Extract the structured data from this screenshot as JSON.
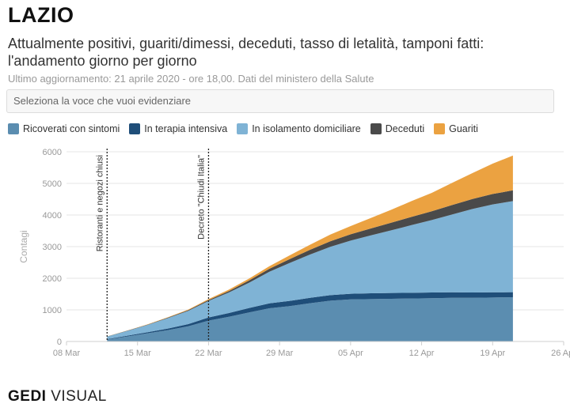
{
  "header": {
    "title": "LAZIO",
    "subtitle": "Attualmente positivi, guariti/dimessi, deceduti, tasso di letalità, tamponi fatti: l'andamento giorno per giorno",
    "updated": "Ultimo aggiornamento: 21 aprile 2020 - ore 18,00. Dati del ministero della Salute"
  },
  "selector": {
    "placeholder": "Seleziona la voce che vuoi evidenziare"
  },
  "footer": {
    "brand_main": "GEDI",
    "brand_sub": "VISUAL"
  },
  "colors": {
    "ricoverati": "#5b8db0",
    "terapia": "#1f4e79",
    "isolamento": "#7fb3d5",
    "deceduti": "#4a4a4a",
    "guariti": "#eba241"
  },
  "chart_data": {
    "type": "area",
    "stacked": true,
    "ylabel": "Contagi",
    "xlabel": "",
    "ylim": [
      0,
      6000
    ],
    "yticks": [
      0,
      1000,
      2000,
      3000,
      4000,
      5000,
      6000
    ],
    "xticks": [
      "08 Mar",
      "15 Mar",
      "22 Mar",
      "29 Mar",
      "05 Apr",
      "12 Apr",
      "19 Apr",
      "26 Apr"
    ],
    "x_start": "2020-03-08",
    "x": [
      "2020-03-12",
      "2020-03-14",
      "2020-03-16",
      "2020-03-18",
      "2020-03-20",
      "2020-03-22",
      "2020-03-24",
      "2020-03-26",
      "2020-03-28",
      "2020-03-30",
      "2020-04-01",
      "2020-04-03",
      "2020-04-05",
      "2020-04-07",
      "2020-04-09",
      "2020-04-11",
      "2020-04-13",
      "2020-04-15",
      "2020-04-17",
      "2020-04-19",
      "2020-04-21"
    ],
    "series": [
      {
        "key": "ricoverati",
        "name": "Ricoverati con sintomi",
        "values": [
          60,
          160,
          260,
          360,
          480,
          660,
          780,
          920,
          1050,
          1120,
          1210,
          1290,
          1330,
          1340,
          1350,
          1360,
          1370,
          1380,
          1380,
          1390,
          1400
        ]
      },
      {
        "key": "terapia",
        "name": "In terapia intensiva",
        "values": [
          15,
          25,
          35,
          50,
          70,
          100,
          120,
          140,
          155,
          165,
          170,
          175,
          180,
          185,
          185,
          180,
          180,
          175,
          170,
          165,
          160
        ]
      },
      {
        "key": "isolamento",
        "name": "In isolamento domiciliare",
        "values": [
          80,
          150,
          230,
          330,
          420,
          520,
          650,
          800,
          1000,
          1200,
          1370,
          1530,
          1680,
          1830,
          1980,
          2140,
          2290,
          2460,
          2640,
          2780,
          2880
        ]
      },
      {
        "key": "deceduti",
        "name": "Deceduti",
        "values": [
          5,
          8,
          10,
          15,
          20,
          30,
          45,
          70,
          95,
          120,
          150,
          175,
          200,
          220,
          240,
          260,
          280,
          300,
          315,
          330,
          340
        ]
      },
      {
        "key": "guariti",
        "name": "Guariti",
        "values": [
          3,
          5,
          10,
          15,
          20,
          30,
          45,
          60,
          80,
          120,
          160,
          210,
          260,
          330,
          410,
          500,
          580,
          700,
          820,
          960,
          1100
        ]
      }
    ],
    "annotations": [
      {
        "x": "2020-03-12",
        "label": "Ristoranti e negozi chiusi"
      },
      {
        "x": "2020-03-22",
        "label": "Decreto \"Chiudi Italia\""
      }
    ]
  }
}
